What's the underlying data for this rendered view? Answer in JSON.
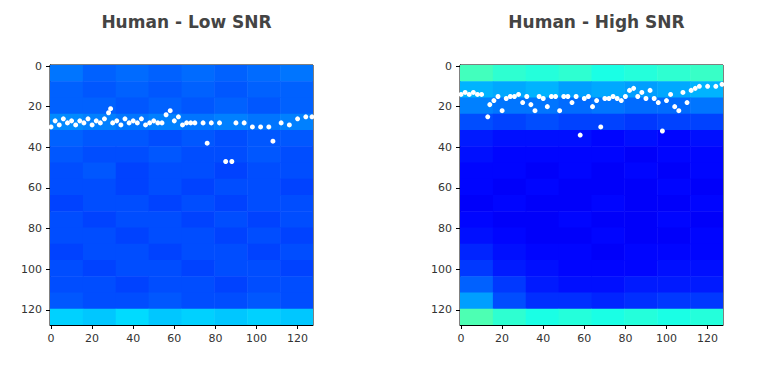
{
  "chart_data": [
    {
      "type": "heatmap",
      "title": "Human - Low SNR",
      "xlim": [
        -0.5,
        127.5
      ],
      "ylim": [
        -0.5,
        127.5
      ],
      "xticks": [
        0,
        20,
        40,
        60,
        80,
        100,
        120
      ],
      "yticks": [
        0,
        20,
        40,
        60,
        80,
        100,
        120
      ],
      "cells": {
        "x_edges": [
          -0.5,
          15.5,
          31.5,
          47.5,
          63.5,
          79.5,
          95.5,
          111.5,
          127.5
        ],
        "y_edges": [
          -0.5,
          7.5,
          15.5,
          23.5,
          31.5,
          39.5,
          47.5,
          55.5,
          63.5,
          71.5,
          79.5,
          87.5,
          95.5,
          103.5,
          111.5,
          119.5,
          127.5
        ],
        "values": [
          [
            0.24,
            0.22,
            0.23,
            0.22,
            0.23,
            0.22,
            0.23,
            0.24
          ],
          [
            0.22,
            0.21,
            0.22,
            0.21,
            0.22,
            0.21,
            0.22,
            0.22
          ],
          [
            0.22,
            0.22,
            0.21,
            0.22,
            0.21,
            0.22,
            0.21,
            0.22
          ],
          [
            0.26,
            0.25,
            0.24,
            0.25,
            0.24,
            0.25,
            0.24,
            0.25
          ],
          [
            0.22,
            0.21,
            0.21,
            0.2,
            0.21,
            0.2,
            0.21,
            0.21
          ],
          [
            0.21,
            0.2,
            0.2,
            0.21,
            0.2,
            0.2,
            0.21,
            0.2
          ],
          [
            0.2,
            0.21,
            0.19,
            0.2,
            0.2,
            0.19,
            0.2,
            0.2
          ],
          [
            0.2,
            0.2,
            0.19,
            0.2,
            0.19,
            0.2,
            0.2,
            0.19
          ],
          [
            0.19,
            0.2,
            0.2,
            0.19,
            0.2,
            0.19,
            0.2,
            0.2
          ],
          [
            0.2,
            0.19,
            0.2,
            0.2,
            0.19,
            0.2,
            0.19,
            0.2
          ],
          [
            0.2,
            0.2,
            0.19,
            0.2,
            0.2,
            0.19,
            0.2,
            0.19
          ],
          [
            0.19,
            0.2,
            0.2,
            0.19,
            0.2,
            0.2,
            0.19,
            0.2
          ],
          [
            0.2,
            0.19,
            0.2,
            0.2,
            0.19,
            0.2,
            0.2,
            0.19
          ],
          [
            0.2,
            0.2,
            0.19,
            0.2,
            0.2,
            0.19,
            0.2,
            0.2
          ],
          [
            0.21,
            0.2,
            0.2,
            0.21,
            0.2,
            0.2,
            0.21,
            0.2
          ],
          [
            0.33,
            0.32,
            0.34,
            0.32,
            0.33,
            0.32,
            0.33,
            0.32
          ]
        ],
        "color_range": [
          0,
          1
        ]
      },
      "x": [
        0,
        2,
        4,
        6,
        8,
        10,
        12,
        14,
        16,
        18,
        20,
        22,
        24,
        26,
        28,
        29,
        30,
        32,
        34,
        36,
        38,
        40,
        42,
        44,
        46,
        48,
        50,
        52,
        54,
        56,
        58,
        60,
        62,
        64,
        66,
        68,
        70,
        74,
        76,
        78,
        82,
        85,
        88,
        90,
        94,
        98,
        102,
        106,
        108,
        112,
        116,
        120,
        124,
        127
      ],
      "y": [
        30,
        27,
        29,
        26,
        28,
        27,
        29,
        27,
        28,
        26,
        29,
        27,
        28,
        26,
        23,
        21,
        28,
        27,
        29,
        26,
        28,
        27,
        28,
        26,
        29,
        28,
        27,
        28,
        28,
        24,
        22,
        27,
        25,
        29,
        28,
        28,
        28,
        28,
        38,
        28,
        28,
        47,
        47,
        28,
        28,
        30,
        30,
        30,
        37,
        28,
        29,
        26,
        25,
        25
      ],
      "color": "#ffffff",
      "marker": "circle"
    },
    {
      "type": "heatmap",
      "title": "Human - High SNR",
      "xlim": [
        -0.5,
        127.5
      ],
      "ylim": [
        -0.5,
        127.5
      ],
      "xticks": [
        0,
        20,
        40,
        60,
        80,
        100,
        120
      ],
      "yticks": [
        0,
        20,
        40,
        60,
        80,
        100,
        120
      ],
      "cells": {
        "x_edges": [
          -0.5,
          15.5,
          31.5,
          47.5,
          63.5,
          79.5,
          95.5,
          111.5,
          127.5
        ],
        "y_edges": [
          -0.5,
          7.5,
          15.5,
          23.5,
          31.5,
          39.5,
          47.5,
          55.5,
          63.5,
          71.5,
          79.5,
          87.5,
          95.5,
          103.5,
          111.5,
          119.5,
          127.5
        ],
        "values": [
          [
            0.44,
            0.42,
            0.41,
            0.42,
            0.4,
            0.41,
            0.42,
            0.43
          ],
          [
            0.3,
            0.29,
            0.3,
            0.28,
            0.29,
            0.28,
            0.29,
            0.3
          ],
          [
            0.25,
            0.24,
            0.24,
            0.23,
            0.24,
            0.23,
            0.23,
            0.24
          ],
          [
            0.2,
            0.19,
            0.2,
            0.19,
            0.19,
            0.18,
            0.19,
            0.19
          ],
          [
            0.15,
            0.14,
            0.14,
            0.14,
            0.13,
            0.14,
            0.13,
            0.14
          ],
          [
            0.14,
            0.13,
            0.13,
            0.13,
            0.13,
            0.12,
            0.13,
            0.13
          ],
          [
            0.13,
            0.13,
            0.12,
            0.13,
            0.12,
            0.13,
            0.12,
            0.13
          ],
          [
            0.13,
            0.12,
            0.13,
            0.12,
            0.12,
            0.12,
            0.13,
            0.12
          ],
          [
            0.12,
            0.13,
            0.12,
            0.12,
            0.13,
            0.12,
            0.12,
            0.13
          ],
          [
            0.13,
            0.12,
            0.12,
            0.13,
            0.12,
            0.12,
            0.13,
            0.12
          ],
          [
            0.14,
            0.13,
            0.12,
            0.12,
            0.13,
            0.12,
            0.12,
            0.13
          ],
          [
            0.16,
            0.14,
            0.13,
            0.13,
            0.12,
            0.13,
            0.13,
            0.13
          ],
          [
            0.18,
            0.15,
            0.14,
            0.13,
            0.13,
            0.13,
            0.14,
            0.14
          ],
          [
            0.22,
            0.18,
            0.15,
            0.14,
            0.14,
            0.15,
            0.15,
            0.15
          ],
          [
            0.28,
            0.2,
            0.17,
            0.17,
            0.16,
            0.17,
            0.18,
            0.18
          ],
          [
            0.45,
            0.42,
            0.4,
            0.41,
            0.4,
            0.41,
            0.4,
            0.41
          ]
        ],
        "color_range": [
          0,
          1
        ]
      },
      "x": [
        0,
        2,
        4,
        6,
        8,
        10,
        13,
        14,
        16,
        18,
        20,
        22,
        24,
        26,
        28,
        30,
        32,
        34,
        36,
        38,
        40,
        42,
        44,
        46,
        48,
        50,
        52,
        54,
        56,
        58,
        60,
        62,
        64,
        66,
        68,
        70,
        72,
        74,
        76,
        78,
        80,
        82,
        84,
        86,
        88,
        90,
        92,
        94,
        96,
        98,
        100,
        102,
        104,
        106,
        108,
        110,
        112,
        114,
        116,
        120,
        124,
        127
      ],
      "y": [
        14,
        13,
        14,
        13,
        14,
        14,
        25,
        19,
        17,
        15,
        22,
        16,
        15,
        15,
        14,
        18,
        15,
        19,
        22,
        15,
        16,
        20,
        15,
        15,
        22,
        15,
        15,
        18,
        15,
        34,
        16,
        15,
        20,
        17,
        30,
        16,
        16,
        15,
        16,
        17,
        15,
        12,
        11,
        15,
        13,
        16,
        12,
        16,
        18,
        32,
        17,
        14,
        20,
        22,
        13,
        18,
        12,
        11,
        10,
        10,
        10,
        9
      ],
      "color": "#ffffff",
      "marker": "circle"
    }
  ]
}
